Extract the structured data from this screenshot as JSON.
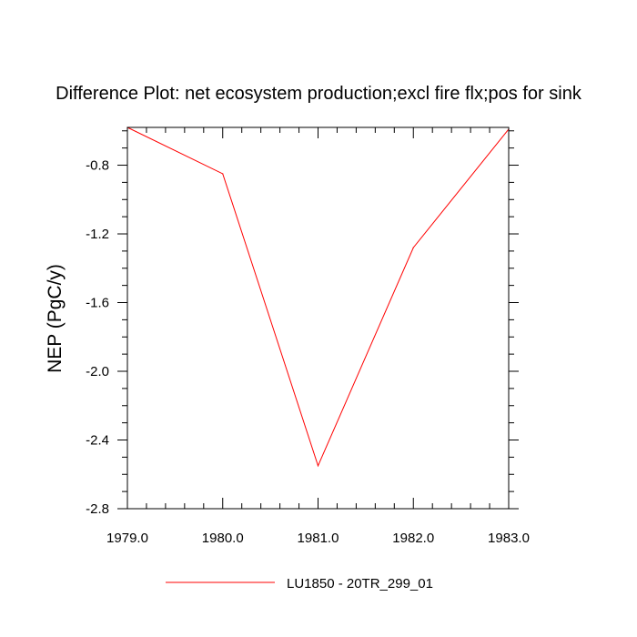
{
  "chart_data": {
    "type": "line",
    "title": "Difference Plot: net ecosystem production;excl fire flx;pos for sink",
    "xlabel": "",
    "ylabel": "NEP  (PgC/y)",
    "xlim": [
      1979.0,
      1983.0
    ],
    "ylim": [
      -2.8,
      -0.58
    ],
    "x_ticks": [
      1979.0,
      1980.0,
      1981.0,
      1982.0,
      1983.0
    ],
    "x_tick_labels": [
      "1979.0",
      "1980.0",
      "1981.0",
      "1982.0",
      "1983.0"
    ],
    "y_ticks": [
      -0.8,
      -1.2,
      -1.6,
      -2.0,
      -2.4,
      -2.8
    ],
    "y_tick_labels": [
      "-0.8",
      "-1.2",
      "-1.6",
      "-2.0",
      "-2.4",
      "-2.8"
    ],
    "grid": false,
    "legend_position": "bottom-center",
    "series": [
      {
        "name": "LU1850 - 20TR_299_01",
        "color": "#ff0000",
        "x": [
          1979.0,
          1980.0,
          1981.0,
          1982.0,
          1983.0
        ],
        "y": [
          -0.58,
          -0.85,
          -2.55,
          -1.28,
          -0.59
        ]
      }
    ]
  }
}
